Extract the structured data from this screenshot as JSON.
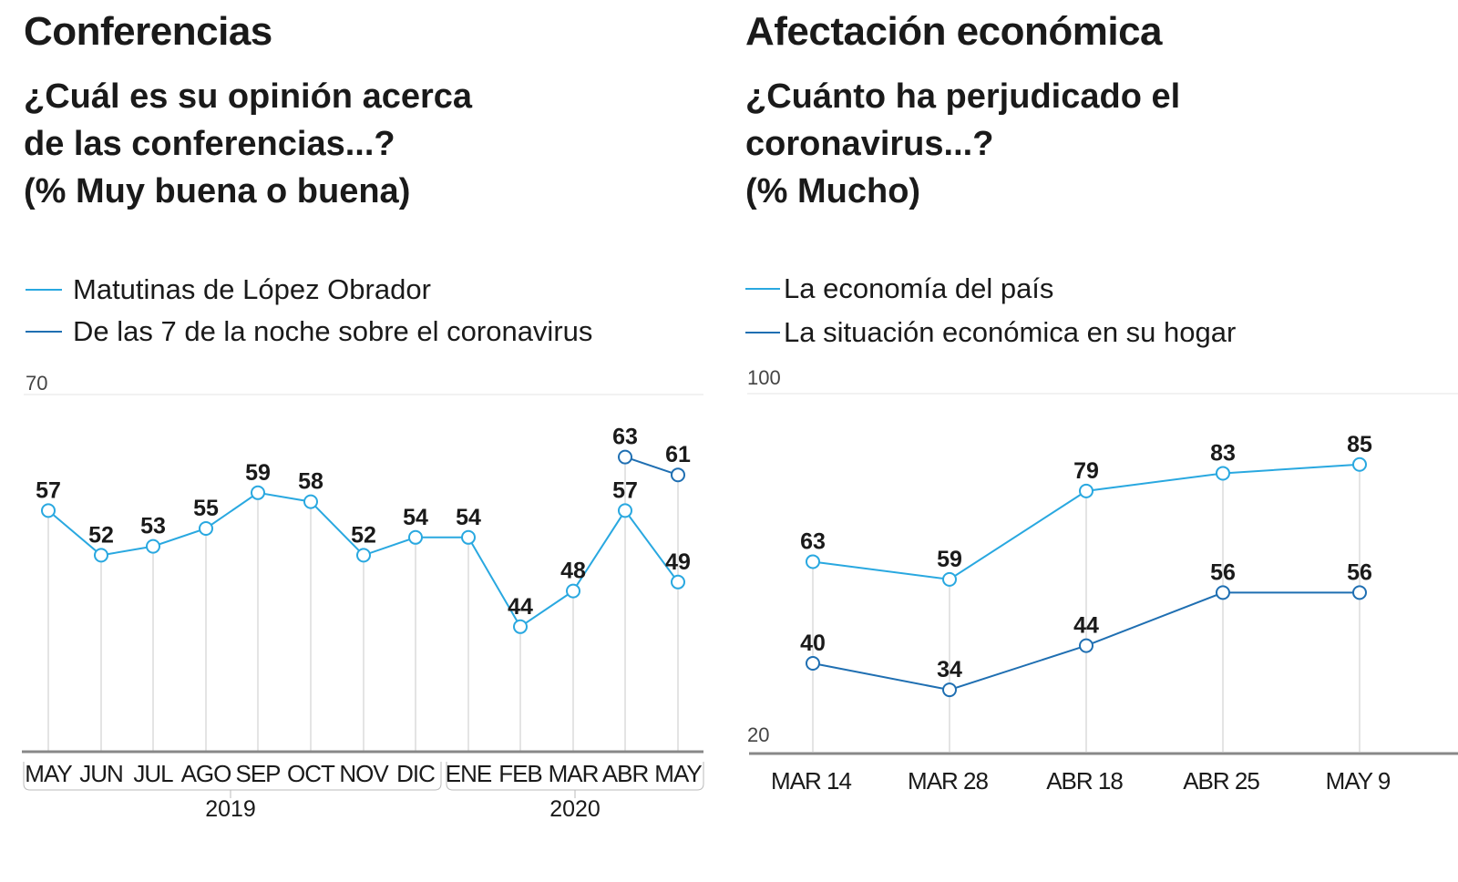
{
  "left": {
    "title": "Conferencias",
    "subtitle_lines": [
      "¿Cuál es su opinión acerca",
      "de las conferencias...?",
      "(% Muy buena o buena)"
    ],
    "legend": [
      "Matutinas de López Obrador",
      "De las 7 de la noche sobre el coronavirus"
    ]
  },
  "right": {
    "title": "Afectación económica",
    "subtitle_lines": [
      "¿Cuánto ha perjudicado el",
      "coronavirus...?",
      "(% Mucho)"
    ],
    "legend": [
      "La economía del país",
      "La situación económica en su hogar"
    ]
  },
  "colors": {
    "light_blue": "#29a8e0",
    "dark_blue": "#1f6fb2",
    "grid": "#c8c8c8",
    "axis": "#888888",
    "text": "#1a1a1a"
  },
  "chart_data": [
    {
      "type": "line",
      "title": "Conferencias",
      "subtitle": "¿Cuál es su opinión acerca de las conferencias...? (% Muy buena o buena)",
      "categories": [
        "MAY",
        "JUN",
        "JUL",
        "AGO",
        "SEP",
        "OCT",
        "NOV",
        "DIC",
        "ENE",
        "FEB",
        "MAR",
        "ABR",
        "MAY"
      ],
      "groups": [
        {
          "label": "2019",
          "from": 0,
          "to": 7
        },
        {
          "label": "2020",
          "from": 8,
          "to": 12
        }
      ],
      "ylim": [
        30,
        70
      ],
      "ytick_label": "70",
      "legend_position": "top-left",
      "series": [
        {
          "name": "Matutinas de López Obrador",
          "color": "#29a8e0",
          "values": [
            57,
            52,
            53,
            55,
            59,
            58,
            52,
            54,
            54,
            44,
            48,
            57,
            49
          ]
        },
        {
          "name": "De las 7 de la noche sobre el coronavirus",
          "color": "#1f6fb2",
          "values": [
            null,
            null,
            null,
            null,
            null,
            null,
            null,
            null,
            null,
            null,
            null,
            63,
            61
          ]
        }
      ]
    },
    {
      "type": "line",
      "title": "Afectación económica",
      "subtitle": "¿Cuánto ha perjudicado el coronavirus...? (% Mucho)",
      "categories": [
        "MAR 14",
        "MAR 28",
        "ABR 18",
        "ABR 25",
        "MAY 9"
      ],
      "ylim": [
        20,
        100
      ],
      "ytick_labels": [
        "100",
        "20"
      ],
      "legend_position": "top-left",
      "series": [
        {
          "name": "La economía del país",
          "color": "#29a8e0",
          "values": [
            63,
            59,
            79,
            83,
            85
          ]
        },
        {
          "name": "La situación económica en su hogar",
          "color": "#1f6fb2",
          "values": [
            40,
            34,
            44,
            56,
            56
          ]
        }
      ]
    }
  ]
}
